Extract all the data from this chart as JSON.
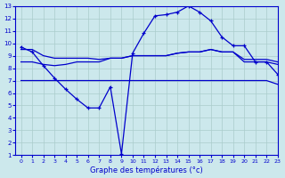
{
  "background_color": "#cce8ec",
  "grid_color": "#aacccc",
  "line_color": "#0000cc",
  "xlabel": "Graphe des températures (°c)",
  "xlim": [
    -0.5,
    23
  ],
  "ylim": [
    1,
    13
  ],
  "yticks": [
    1,
    2,
    3,
    4,
    5,
    6,
    7,
    8,
    9,
    10,
    11,
    12,
    13
  ],
  "xticks": [
    0,
    1,
    2,
    3,
    4,
    5,
    6,
    7,
    8,
    9,
    10,
    11,
    12,
    13,
    14,
    15,
    16,
    17,
    18,
    19,
    20,
    21,
    22,
    23
  ],
  "line1_x": [
    0,
    1,
    2,
    3,
    4,
    5,
    6,
    7,
    8,
    9,
    10,
    11,
    12,
    13,
    14,
    15,
    16,
    17,
    18,
    19,
    20,
    21,
    22,
    23
  ],
  "line1_y": [
    9.7,
    9.3,
    8.2,
    7.2,
    6.3,
    5.5,
    4.8,
    4.8,
    6.5,
    1.1,
    9.2,
    10.8,
    12.2,
    12.3,
    12.5,
    13.0,
    12.5,
    11.8,
    10.5,
    9.8,
    9.8,
    8.5,
    8.5,
    7.5
  ],
  "line2_x": [
    0,
    1,
    2,
    3,
    4,
    5,
    6,
    7,
    8,
    9,
    10,
    11,
    12,
    13,
    14,
    15,
    16,
    17,
    18,
    19,
    20,
    21,
    22,
    23
  ],
  "line2_y": [
    7.0,
    7.0,
    7.0,
    7.0,
    7.0,
    7.0,
    7.0,
    7.0,
    7.0,
    7.0,
    7.0,
    7.0,
    7.0,
    7.0,
    7.0,
    7.0,
    7.0,
    7.0,
    7.0,
    7.0,
    7.0,
    7.0,
    7.0,
    6.7
  ],
  "line3_x": [
    0,
    1,
    2,
    3,
    4,
    5,
    6,
    7,
    8,
    9,
    10,
    11,
    12,
    13,
    14,
    15,
    16,
    17,
    18,
    19,
    20,
    21,
    22,
    23
  ],
  "line3_y": [
    8.5,
    8.5,
    8.3,
    8.2,
    8.3,
    8.5,
    8.5,
    8.5,
    8.8,
    8.8,
    9.0,
    9.0,
    9.0,
    9.0,
    9.2,
    9.3,
    9.3,
    9.5,
    9.3,
    9.3,
    8.5,
    8.5,
    8.5,
    8.3
  ],
  "line4_x": [
    0,
    1,
    2,
    3,
    4,
    5,
    6,
    7,
    8,
    9,
    10,
    11,
    12,
    13,
    14,
    15,
    16,
    17,
    18,
    19,
    20,
    21,
    22,
    23
  ],
  "line4_y": [
    9.5,
    9.5,
    9.0,
    8.8,
    8.8,
    8.8,
    8.8,
    8.7,
    8.8,
    8.8,
    9.0,
    9.0,
    9.0,
    9.0,
    9.2,
    9.3,
    9.3,
    9.5,
    9.3,
    9.3,
    8.7,
    8.7,
    8.7,
    8.5
  ]
}
